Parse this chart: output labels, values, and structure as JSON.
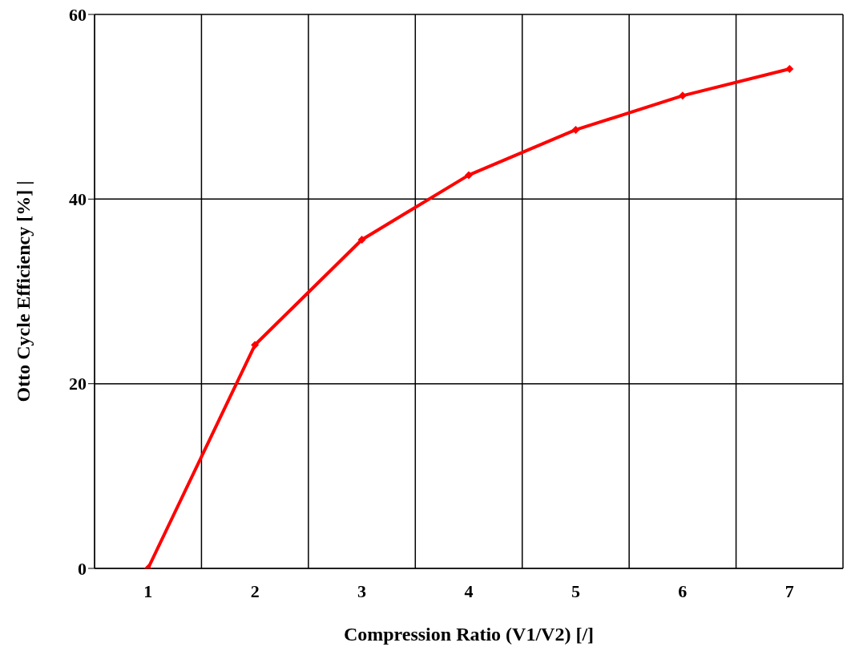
{
  "chart_data": {
    "type": "line",
    "xlabel": "Compression Ratio (V1/V2) [/]",
    "ylabel": "Otto Cycle Efficiency [%]  |",
    "categories": [
      "1",
      "2",
      "3",
      "4",
      "5",
      "6",
      "7"
    ],
    "series": [
      {
        "color": "#ff0000",
        "values": [
          0,
          24.2,
          35.6,
          42.6,
          47.5,
          51.2,
          54.1
        ]
      }
    ],
    "ylim": [
      0,
      60
    ],
    "yticks": [
      0,
      20,
      40,
      60
    ],
    "grid": true,
    "marker": "diamond",
    "line_style": "solid"
  }
}
